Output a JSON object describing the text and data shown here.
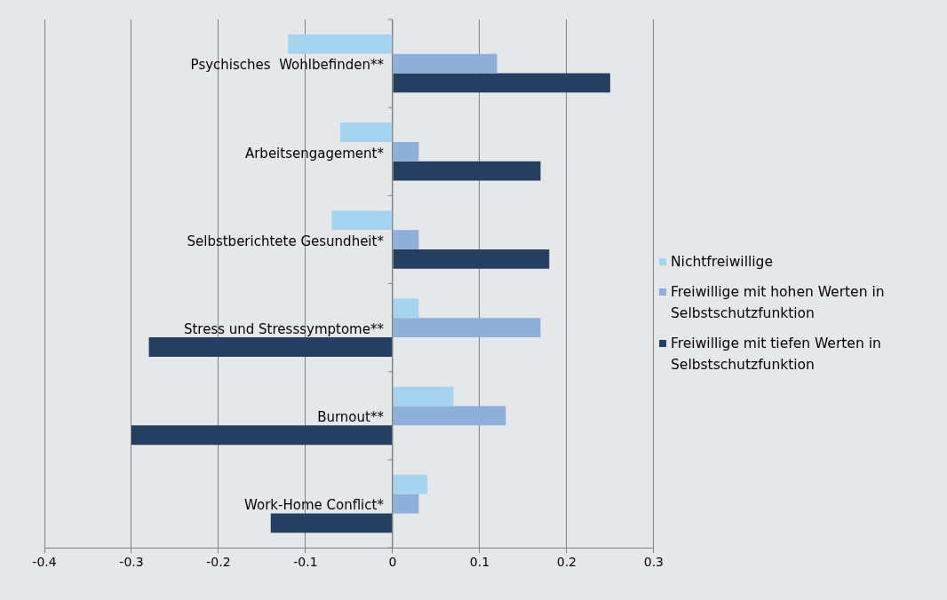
{
  "chart_data": {
    "type": "bar",
    "orientation": "horizontal",
    "categories": [
      "Psychisches  Wohlbefinden**",
      "Arbeitsengagement*",
      "Selbstberichtete Gesundheit*",
      "Stress und Stresssymptome**",
      "Burnout**",
      "Work-Home Conflict*"
    ],
    "series": [
      {
        "name": "Nichtfreiwillige",
        "color": "#a6d3ee",
        "values": [
          -0.12,
          -0.06,
          -0.07,
          0.03,
          0.07,
          0.04
        ]
      },
      {
        "name": "Freiwillige mit hohen Werten in Selbstschutzfunktion",
        "color": "#8eb0d8",
        "values": [
          0.12,
          0.03,
          0.03,
          0.17,
          0.13,
          0.03
        ]
      },
      {
        "name": "Freiwillige mit tiefen Werten in Selbstschutzfunktion",
        "color": "#243f60",
        "values": [
          0.25,
          0.17,
          0.18,
          -0.28,
          -0.3,
          -0.14
        ]
      }
    ],
    "xlim": [
      -0.4,
      0.3
    ],
    "xticks": [
      -0.4,
      -0.3,
      -0.2,
      -0.1,
      0,
      0.1,
      0.2,
      0.3
    ],
    "grid": "x",
    "legend": "right"
  }
}
